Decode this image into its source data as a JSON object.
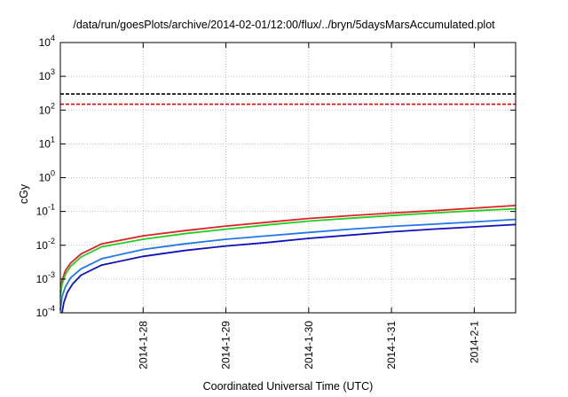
{
  "chart_data": {
    "type": "line",
    "title": "/data/run/goesPlots/archive/2014-02-01/12:00/flux/../bryn/5daysMarsAccumulated.plot",
    "xlabel": "Coordinated Universal Time (UTC)",
    "ylabel": "cGy",
    "y_scale": "log",
    "ylim": [
      0.0001,
      10000
    ],
    "y_ticks": [
      {
        "value": 0.0001,
        "base": "10",
        "exp": "-4"
      },
      {
        "value": 0.001,
        "base": "10",
        "exp": "-3"
      },
      {
        "value": 0.01,
        "base": "10",
        "exp": "-2"
      },
      {
        "value": 0.1,
        "base": "10",
        "exp": "-1"
      },
      {
        "value": 1,
        "base": "10",
        "exp": "0"
      },
      {
        "value": 10,
        "base": "10",
        "exp": "1"
      },
      {
        "value": 100,
        "base": "10",
        "exp": "2"
      },
      {
        "value": 1000,
        "base": "10",
        "exp": "3"
      },
      {
        "value": 10000,
        "base": "10",
        "exp": "4"
      }
    ],
    "xlim": [
      "2014-01-27T00:00",
      "2014-02-01T12:00"
    ],
    "x_ticks": [
      {
        "value": "2014-01-28T00:00",
        "label": "2014-1-28"
      },
      {
        "value": "2014-01-29T00:00",
        "label": "2014-1-29"
      },
      {
        "value": "2014-01-30T00:00",
        "label": "2014-1-30"
      },
      {
        "value": "2014-01-31T00:00",
        "label": "2014-1-31"
      },
      {
        "value": "2014-02-01T00:00",
        "label": "2014-2-1"
      }
    ],
    "grid": true,
    "thresholds": [
      {
        "value": 300,
        "color": "#000000",
        "style": "dashed"
      },
      {
        "value": 150,
        "color": "#e00000",
        "style": "dashed"
      }
    ],
    "series": [
      {
        "color": "#dd2222",
        "x": [
          "2014-01-27T00:00",
          "2014-01-27T00:30",
          "2014-01-27T01:30",
          "2014-01-27T03:00",
          "2014-01-27T06:00",
          "2014-01-27T12:00",
          "2014-01-28T00:00",
          "2014-01-28T12:00",
          "2014-01-29T00:00",
          "2014-01-29T12:00",
          "2014-01-30T00:00",
          "2014-01-30T12:00",
          "2014-01-31T00:00",
          "2014-01-31T12:00",
          "2014-02-01T00:00",
          "2014-02-01T12:00"
        ],
        "values": [
          0.0004,
          0.0009,
          0.0018,
          0.003,
          0.0055,
          0.011,
          0.019,
          0.027,
          0.037,
          0.048,
          0.062,
          0.075,
          0.09,
          0.105,
          0.125,
          0.15
        ]
      },
      {
        "color": "#22cc22",
        "x": [
          "2014-01-27T00:00",
          "2014-01-27T00:30",
          "2014-01-27T01:30",
          "2014-01-27T03:00",
          "2014-01-27T06:00",
          "2014-01-27T12:00",
          "2014-01-28T00:00",
          "2014-01-28T12:00",
          "2014-01-29T00:00",
          "2014-01-29T12:00",
          "2014-01-30T00:00",
          "2014-01-30T12:00",
          "2014-01-31T00:00",
          "2014-01-31T12:00",
          "2014-02-01T00:00",
          "2014-02-01T12:00"
        ],
        "values": [
          0.0003,
          0.0007,
          0.0014,
          0.0024,
          0.0045,
          0.009,
          0.015,
          0.022,
          0.03,
          0.04,
          0.052,
          0.063,
          0.076,
          0.09,
          0.105,
          0.12
        ]
      },
      {
        "color": "#2277ee",
        "x": [
          "2014-01-27T00:00",
          "2014-01-27T00:30",
          "2014-01-27T01:30",
          "2014-01-27T03:00",
          "2014-01-27T06:00",
          "2014-01-27T12:00",
          "2014-01-28T00:00",
          "2014-01-28T12:00",
          "2014-01-29T00:00",
          "2014-01-29T12:00",
          "2014-01-30T00:00",
          "2014-01-30T12:00",
          "2014-01-31T00:00",
          "2014-01-31T12:00",
          "2014-02-01T00:00",
          "2014-02-01T12:00"
        ],
        "values": [
          0.00012,
          0.0003,
          0.0006,
          0.0011,
          0.002,
          0.004,
          0.0075,
          0.011,
          0.015,
          0.019,
          0.024,
          0.03,
          0.036,
          0.042,
          0.049,
          0.058
        ]
      },
      {
        "color": "#1111bb",
        "x": [
          "2014-01-27T00:30",
          "2014-01-27T01:00",
          "2014-01-27T02:00",
          "2014-01-27T03:30",
          "2014-01-27T06:00",
          "2014-01-27T12:00",
          "2014-01-28T00:00",
          "2014-01-28T12:00",
          "2014-01-29T00:00",
          "2014-01-29T12:00",
          "2014-01-30T00:00",
          "2014-01-30T12:00",
          "2014-01-31T00:00",
          "2014-01-31T12:00",
          "2014-02-01T00:00",
          "2014-02-01T12:00"
        ],
        "values": [
          0.0001,
          0.0002,
          0.0004,
          0.0007,
          0.0013,
          0.0026,
          0.0047,
          0.007,
          0.0095,
          0.012,
          0.016,
          0.02,
          0.025,
          0.03,
          0.035,
          0.041
        ]
      }
    ]
  }
}
